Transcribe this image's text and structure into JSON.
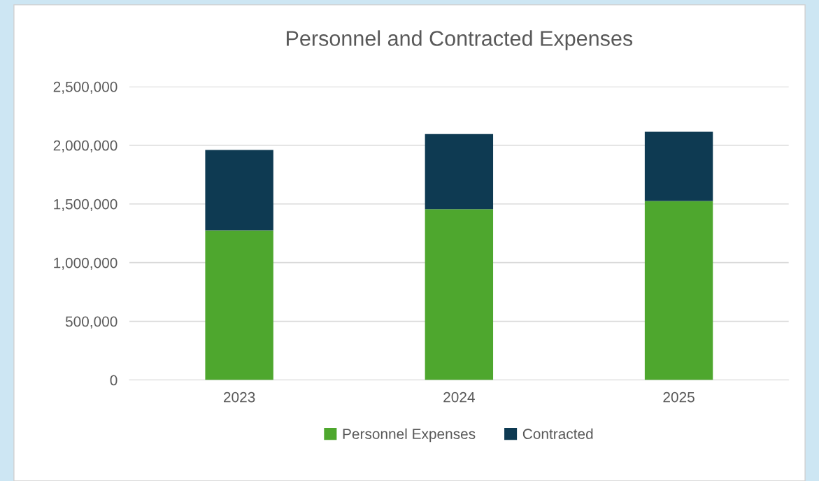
{
  "chart_data": {
    "type": "bar",
    "title": "Personnel and Contracted Expenses",
    "stacked": true,
    "categories": [
      "2023",
      "2024",
      "2025"
    ],
    "series": [
      {
        "name": "Personnel Expenses",
        "color": "#4ea72e",
        "values": [
          1275000,
          1455000,
          1525000
        ]
      },
      {
        "name": "Contracted",
        "color": "#0e3a52",
        "values": [
          685000,
          640000,
          590000
        ]
      }
    ],
    "ylim": [
      0,
      2500000
    ],
    "yticks": [
      {
        "value": 0,
        "label": "0"
      },
      {
        "value": 500000,
        "label": "500,000"
      },
      {
        "value": 1000000,
        "label": "1,000,000"
      },
      {
        "value": 1500000,
        "label": "1,500,000"
      },
      {
        "value": 2000000,
        "label": "2,000,000"
      },
      {
        "value": 2500000,
        "label": "2,500,000"
      }
    ],
    "grid": "y",
    "legend": "bottom"
  }
}
